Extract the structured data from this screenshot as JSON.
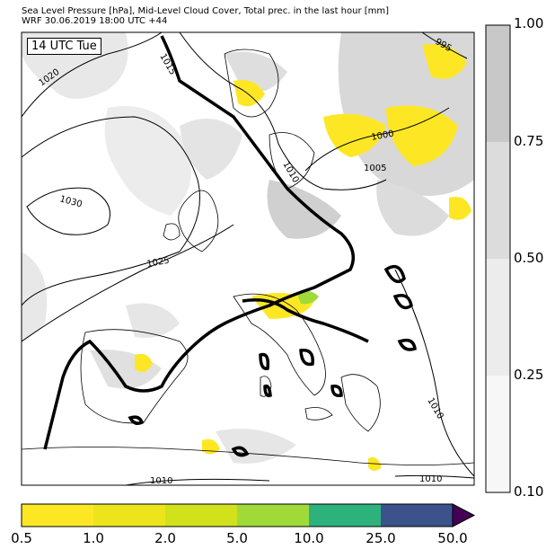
{
  "header": {
    "title_line1": "Sea Level Pressure [hPa], Mid-Level Cloud Cover, Total prec. in the last hour [mm]",
    "title_line2": "WRF 30.06.2019 18:00 UTC +44"
  },
  "map": {
    "time_label": "14 UTC Tue",
    "isobar_labels": [
      "1020",
      "1015",
      "995",
      "1000",
      "1005",
      "1010",
      "1030",
      "1025",
      "1010",
      "1010",
      "1010"
    ]
  },
  "cloud_cover_bar": {
    "ticks": [
      "1.00",
      "0.75",
      "0.50",
      "0.25",
      "0.10"
    ],
    "colors": [
      "#c8c8c8",
      "#dcdcdc",
      "#ececec",
      "#f7f7f7"
    ]
  },
  "precip_bar": {
    "ticks": [
      "0.5",
      "1.0",
      "2.0",
      "5.0",
      "10.0",
      "25.0",
      "50.0"
    ],
    "colors": [
      "#fde725",
      "#ece51b",
      "#d1e11c",
      "#a0da39",
      "#2db27d",
      "#3b528b",
      "#440154"
    ]
  }
}
